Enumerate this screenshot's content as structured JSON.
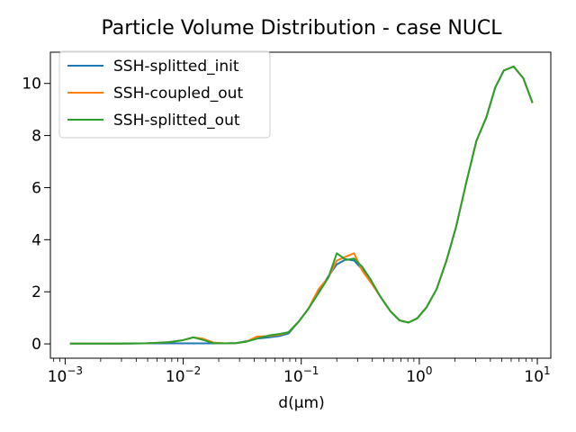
{
  "chart_data": {
    "type": "line",
    "title": "Particle Volume Distribution - case NUCL",
    "xlabel": "d(μm)",
    "ylabel": "",
    "xscale": "log",
    "xlim": [
      0.00075,
      13
    ],
    "ylim": [
      -0.55,
      11.2
    ],
    "xticks": [
      {
        "value": 0.001,
        "base": "10",
        "exp": "−3"
      },
      {
        "value": 0.01,
        "base": "10",
        "exp": "−2"
      },
      {
        "value": 0.1,
        "base": "10",
        "exp": "−1"
      },
      {
        "value": 1,
        "base": "10",
        "exp": "0"
      },
      {
        "value": 10,
        "base": "10",
        "exp": "1"
      }
    ],
    "yticks": [
      {
        "value": 0,
        "label": "0"
      },
      {
        "value": 2,
        "label": "2"
      },
      {
        "value": 4,
        "label": "4"
      },
      {
        "value": 6,
        "label": "6"
      },
      {
        "value": 8,
        "label": "8"
      },
      {
        "value": 10,
        "label": "10"
      }
    ],
    "grid": false,
    "legend_position": "top-left",
    "x": [
      0.0011,
      0.0014,
      0.0018,
      0.0023,
      0.0029,
      0.0037,
      0.0047,
      0.006,
      0.0076,
      0.0097,
      0.0122,
      0.0147,
      0.018,
      0.023,
      0.028,
      0.034,
      0.042,
      0.053,
      0.065,
      0.078,
      0.095,
      0.115,
      0.14,
      0.17,
      0.2,
      0.24,
      0.28,
      0.33,
      0.39,
      0.47,
      0.57,
      0.68,
      0.81,
      0.96,
      1.15,
      1.4,
      1.7,
      2.05,
      2.5,
      3.05,
      3.7,
      4.4,
      5.2,
      6.3,
      7.6,
      9.1
    ],
    "series": [
      {
        "name": "SSH-splitted_init",
        "color": "#1f77b4",
        "values": [
          0.01,
          0.01,
          0.01,
          0.01,
          0.01,
          0.01,
          0.02,
          0.02,
          0.02,
          0.02,
          0.02,
          0.02,
          0.02,
          0.02,
          0.03,
          0.1,
          0.2,
          0.25,
          0.3,
          0.4,
          0.85,
          1.35,
          2.0,
          2.6,
          3.05,
          3.25,
          3.2,
          2.85,
          2.4,
          1.8,
          1.25,
          0.9,
          0.82,
          0.98,
          1.4,
          2.1,
          3.2,
          4.5,
          6.2,
          7.8,
          8.7,
          9.85,
          10.5,
          10.65,
          10.2,
          9.25
        ]
      },
      {
        "name": "SSH-coupled_out",
        "color": "#ff7f0e",
        "values": [
          0.01,
          0.01,
          0.01,
          0.01,
          0.01,
          0.02,
          0.02,
          0.04,
          0.07,
          0.13,
          0.25,
          0.2,
          0.05,
          0.02,
          0.03,
          0.08,
          0.28,
          0.3,
          0.35,
          0.45,
          0.85,
          1.35,
          2.1,
          2.55,
          3.2,
          3.35,
          3.48,
          2.8,
          2.35,
          1.8,
          1.25,
          0.9,
          0.82,
          0.98,
          1.4,
          2.1,
          3.2,
          4.5,
          6.2,
          7.8,
          8.7,
          9.85,
          10.5,
          10.65,
          10.2,
          9.25
        ]
      },
      {
        "name": "SSH-splitted_out",
        "color": "#2ca02c",
        "values": [
          0.01,
          0.01,
          0.01,
          0.01,
          0.01,
          0.02,
          0.02,
          0.04,
          0.07,
          0.13,
          0.25,
          0.15,
          0.03,
          0.02,
          0.03,
          0.08,
          0.2,
          0.32,
          0.38,
          0.45,
          0.85,
          1.35,
          1.95,
          2.55,
          3.48,
          3.22,
          3.28,
          2.95,
          2.45,
          1.8,
          1.25,
          0.9,
          0.82,
          0.98,
          1.4,
          2.1,
          3.2,
          4.5,
          6.2,
          7.8,
          8.7,
          9.85,
          10.5,
          10.65,
          10.2,
          9.25
        ]
      }
    ]
  }
}
